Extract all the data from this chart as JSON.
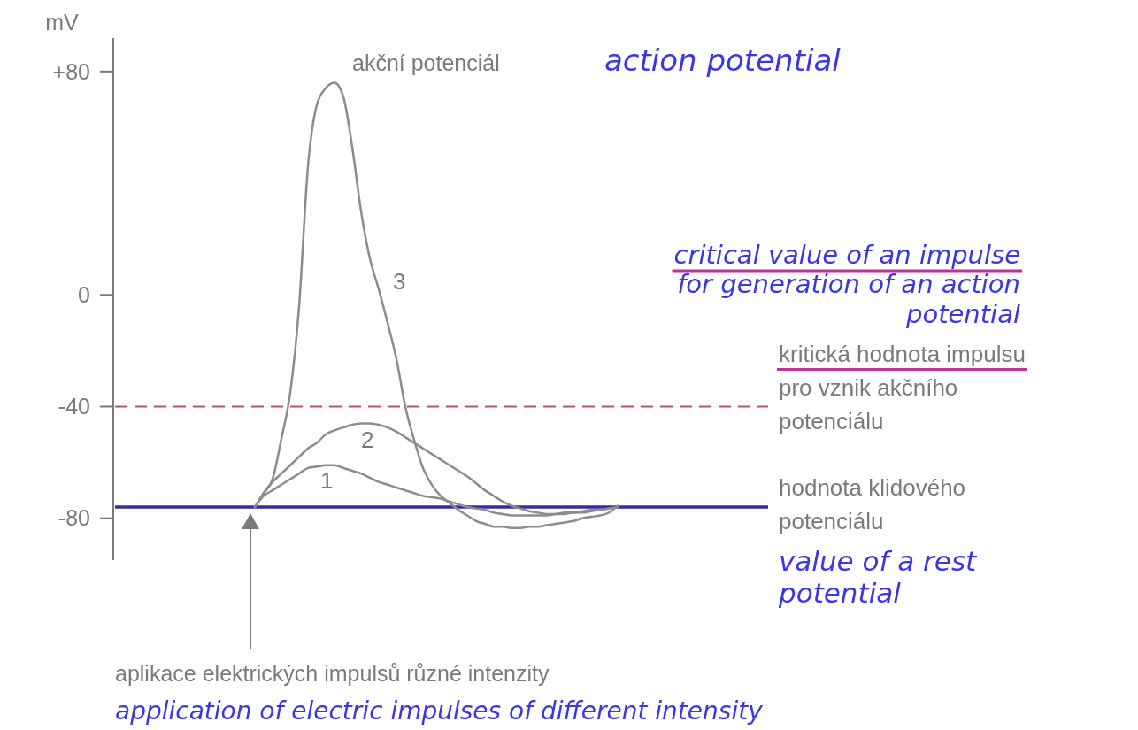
{
  "chart_data": {
    "type": "line",
    "ylabel": "mV",
    "categories": [
      null,
      null,
      null,
      null,
      null,
      null,
      null,
      null,
      null,
      null,
      null,
      null,
      null,
      null,
      null,
      null,
      null,
      null,
      null,
      null,
      null,
      null,
      null,
      null,
      null,
      null,
      null,
      null,
      null,
      null,
      null,
      null,
      null,
      null,
      null,
      null,
      null,
      null,
      null,
      null,
      null,
      null,
      null,
      null,
      null,
      null,
      null,
      null,
      null,
      null,
      null,
      null,
      null,
      null,
      null,
      null,
      null,
      null,
      null,
      null,
      null,
      null,
      null,
      null,
      null,
      null,
      null,
      null,
      null,
      null,
      null,
      null,
      null,
      null,
      null
    ],
    "ylim": [
      -95,
      92
    ],
    "yticks": [
      {
        "value": 80,
        "label": "+80"
      },
      0,
      -40,
      -80
    ],
    "grid": false,
    "legend": false,
    "marker": "none",
    "line_style": "solid",
    "series": [
      {
        "name": "1",
        "color": "#8c8c8c",
        "values": [
          null,
          null,
          null,
          null,
          null,
          null,
          null,
          null,
          null,
          null,
          null,
          null,
          null,
          null,
          null,
          null,
          -76,
          -72,
          -70,
          -68,
          -66,
          -64,
          -62,
          -61.5,
          -61,
          -61,
          -62,
          -63,
          -64,
          -65.5,
          -67,
          -68,
          -69,
          -70,
          -71,
          -72,
          -72.5,
          -73,
          -74,
          -75,
          -76,
          -76.5,
          -77,
          -78,
          -78.5,
          -79,
          -79,
          -79,
          -79,
          -79,
          -78.5,
          -78.5,
          -78,
          -78,
          -77.5,
          -77,
          -76.5,
          null,
          null,
          null,
          null,
          null,
          null,
          null,
          null,
          null,
          null,
          null,
          null,
          null,
          null,
          null,
          null,
          null,
          null
        ]
      },
      {
        "name": "2",
        "color": "#8c8c8c",
        "values": [
          null,
          null,
          null,
          null,
          null,
          null,
          null,
          null,
          null,
          null,
          null,
          null,
          null,
          null,
          null,
          null,
          -76,
          -71,
          -67,
          -64,
          -61,
          -58,
          -55,
          -53,
          -50,
          -48.5,
          -47.5,
          -46.5,
          -46,
          -46,
          -46.5,
          -47.5,
          -49,
          -51,
          -53,
          -55,
          -57,
          -59,
          -61,
          -63,
          -65,
          -67.5,
          -70,
          -72,
          -74,
          -75.5,
          -76.5,
          -77.5,
          -78,
          -78.5,
          -78.5,
          -78,
          -78,
          -77.5,
          -77,
          -77,
          -76.5,
          -76,
          null,
          null,
          null,
          null,
          null,
          null,
          null,
          null,
          null,
          null,
          null,
          null,
          null,
          null,
          null,
          null,
          null
        ]
      },
      {
        "name": "3",
        "color": "#8c8c8c",
        "values": [
          null,
          null,
          null,
          null,
          null,
          null,
          null,
          null,
          null,
          null,
          null,
          null,
          null,
          null,
          null,
          null,
          -76,
          -71,
          -66,
          -51.5,
          -35,
          -4,
          46,
          68,
          74,
          76,
          71,
          53,
          30,
          13,
          2,
          -10,
          -23,
          -40,
          -52,
          -62,
          -68,
          -72,
          -74.5,
          -77,
          -79,
          -81,
          -82,
          -83,
          -83,
          -83.5,
          -83.5,
          -83,
          -83,
          -82.5,
          -82,
          -81.5,
          -81,
          -80,
          -79.5,
          -79,
          -78,
          -75.5,
          null,
          null,
          null,
          null,
          null,
          null,
          null,
          null,
          null,
          null,
          null,
          null,
          null,
          null,
          null,
          null,
          null
        ]
      }
    ],
    "ref_lines": [
      {
        "axis": "y",
        "value": -40,
        "label": "kritická hodnota impulsu pro vznik akčního potenciálu",
        "color": "#c0506a",
        "line_style": "dashed"
      },
      {
        "axis": "y",
        "value": -76,
        "label": "hodnota klidového potenciálu",
        "color": "#3a2aa0",
        "line_style": "solid"
      }
    ],
    "annotations": [
      "akční potenciál",
      "action potential",
      "critical value of an impulse for generation of an action potential",
      "value of a rest potential",
      "aplikace elektrických impulsů různé intenzity",
      "application of electric impulses of different intensity"
    ]
  }
}
